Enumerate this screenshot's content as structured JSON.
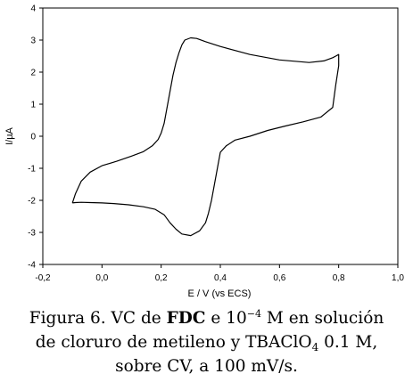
{
  "chart_data": {
    "type": "line",
    "title": "",
    "xlabel": "E / V (vs ECS)",
    "ylabel": "I/µA",
    "xlim": [
      -0.2,
      1.0
    ],
    "ylim": [
      -4,
      4
    ],
    "x_ticks": [
      "-0,2",
      "0,0",
      "0,2",
      "0,4",
      "0,6",
      "0,8",
      "1,0"
    ],
    "y_ticks": [
      "-4",
      "-3",
      "-2",
      "-1",
      "0",
      "1",
      "2",
      "3",
      "4"
    ],
    "grid": false,
    "series": [
      {
        "name": "",
        "x": [
          -0.1,
          -0.09,
          -0.07,
          -0.04,
          0.0,
          0.05,
          0.1,
          0.14,
          0.17,
          0.19,
          0.2,
          0.21,
          0.22,
          0.23,
          0.24,
          0.25,
          0.26,
          0.27,
          0.28,
          0.3,
          0.32,
          0.35,
          0.4,
          0.5,
          0.6,
          0.7,
          0.75,
          0.78,
          0.79,
          0.8,
          0.8,
          0.79,
          0.78,
          0.74,
          0.68,
          0.62,
          0.56,
          0.5,
          0.45,
          0.42,
          0.4,
          0.39,
          0.38,
          0.37,
          0.36,
          0.35,
          0.33,
          0.3,
          0.27,
          0.25,
          0.23,
          0.21,
          0.18,
          0.14,
          0.09,
          0.04,
          0.0,
          -0.04,
          -0.07,
          -0.09,
          -0.1,
          -0.1
        ],
        "y": [
          -2.08,
          -1.8,
          -1.4,
          -1.12,
          -0.92,
          -0.78,
          -0.62,
          -0.48,
          -0.3,
          -0.1,
          0.1,
          0.4,
          0.9,
          1.4,
          1.9,
          2.3,
          2.6,
          2.85,
          3.0,
          3.07,
          3.05,
          2.95,
          2.8,
          2.55,
          2.38,
          2.3,
          2.35,
          2.45,
          2.5,
          2.55,
          2.2,
          1.6,
          0.9,
          0.6,
          0.45,
          0.32,
          0.18,
          0.0,
          -0.12,
          -0.3,
          -0.5,
          -1.0,
          -1.5,
          -2.0,
          -2.4,
          -2.7,
          -2.95,
          -3.1,
          -3.05,
          -2.9,
          -2.7,
          -2.45,
          -2.28,
          -2.2,
          -2.14,
          -2.1,
          -2.08,
          -2.07,
          -2.06,
          -2.07,
          -2.08,
          -2.08
        ]
      }
    ]
  },
  "caption": {
    "line1_pre": "Figura 6. VC de ",
    "line1_bold": "FDC",
    "line1_mid": " e 10",
    "line1_sup": "−4",
    "line1_post": " M en solución",
    "line2_pre": "de cloruro de metileno y TBAClO",
    "line2_sub": "4",
    "line2_post": " 0.1 M,",
    "line3": "sobre CV, a 100 mV/s."
  }
}
